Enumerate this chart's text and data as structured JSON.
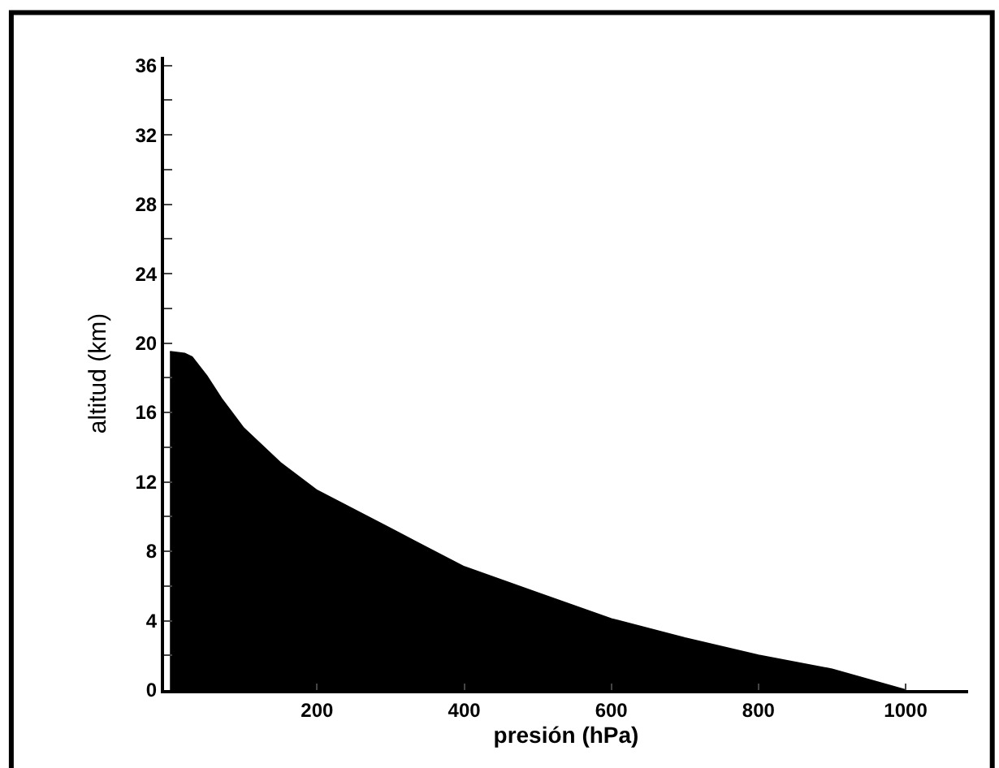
{
  "chart_data": {
    "type": "area",
    "xlabel": "presión (hPa)",
    "ylabel": "altitud (km)",
    "x": [
      0,
      20,
      30,
      50,
      70,
      100,
      150,
      200,
      300,
      400,
      500,
      600,
      700,
      800,
      900,
      1000
    ],
    "series": [
      {
        "color": "#000000",
        "values": [
          19.5,
          19.4,
          19.2,
          18.1,
          16.8,
          15.1,
          13.1,
          11.5,
          9.3,
          7.1,
          5.6,
          4.1,
          3.0,
          2.0,
          1.2,
          0
        ]
      }
    ],
    "xlim": [
      -8,
      1085
    ],
    "ylim": [
      0,
      36.5
    ],
    "xticks": [
      200,
      400,
      600,
      800,
      1000
    ],
    "yticks": [
      0,
      {
        "value": 2,
        "label": null
      },
      4,
      {
        "value": 6,
        "label": null
      },
      8,
      {
        "value": 10,
        "label": null
      },
      12,
      {
        "value": 14,
        "label": null
      },
      16,
      {
        "value": 18,
        "label": null
      },
      20,
      {
        "value": 22,
        "label": null
      },
      24,
      {
        "value": 26,
        "label": null
      },
      28,
      {
        "value": 30,
        "label": null
      },
      32,
      {
        "value": 34,
        "label": null
      },
      36
    ]
  }
}
